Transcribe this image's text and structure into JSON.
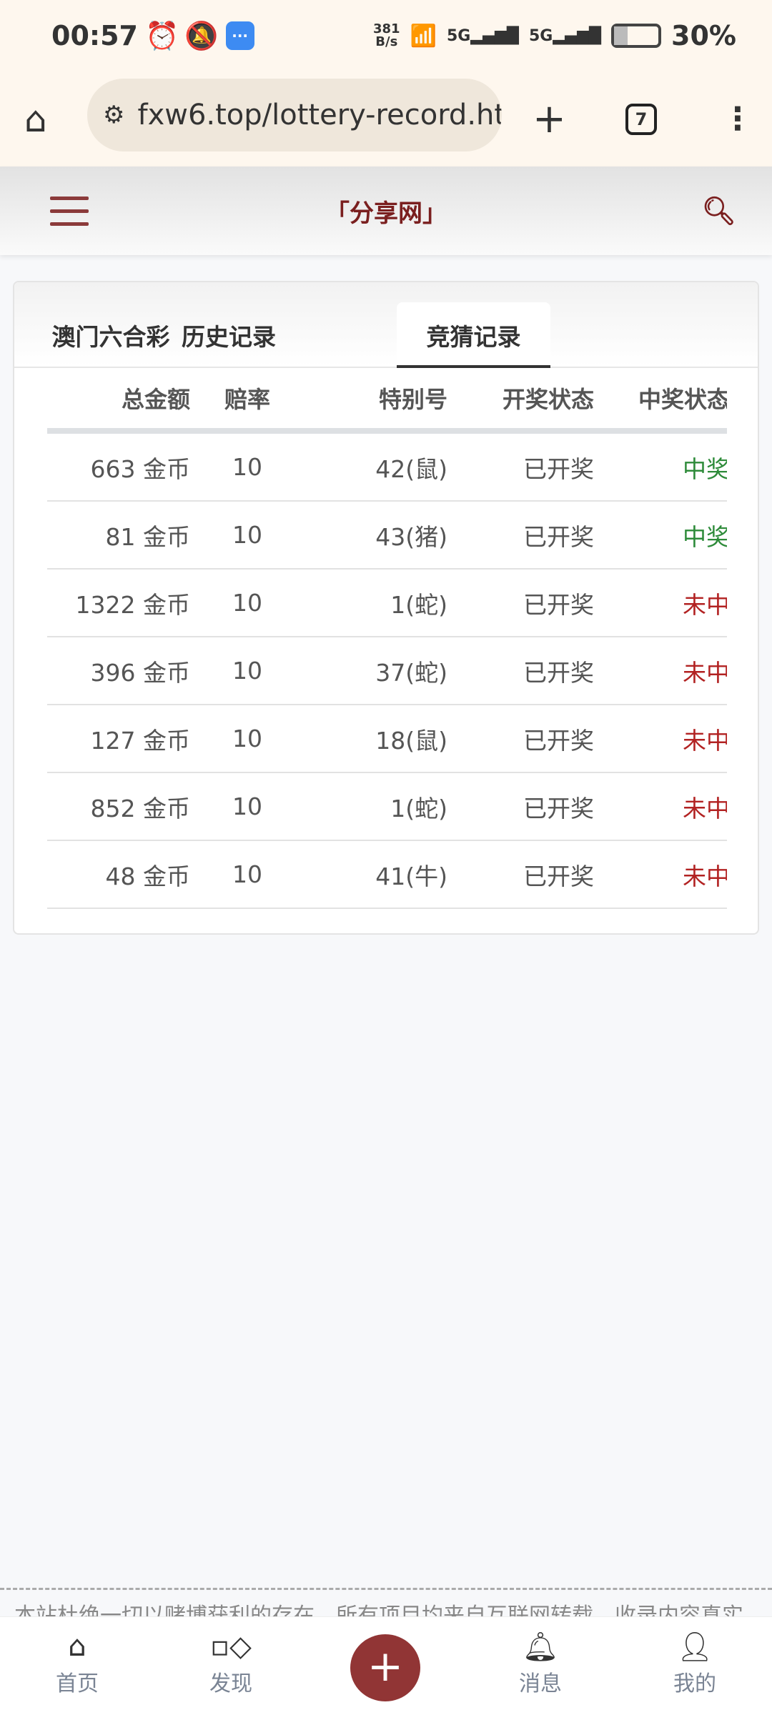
{
  "status_bar": {
    "time": "00:57",
    "net_speed": "381",
    "net_unit": "B/s",
    "battery": "30%",
    "icons": [
      "alarm-icon",
      "bell-off-icon",
      "message-app-icon",
      "wifi-icon",
      "signal-5g-icon",
      "signal-5g-icon",
      "battery-charging-icon"
    ]
  },
  "browser": {
    "url": "fxw6.top/lottery-record.ht",
    "tab_count": "7"
  },
  "header": {
    "title": "「分享网」"
  },
  "tabs": [
    {
      "label": "澳门六合彩"
    },
    {
      "label": "历史记录"
    },
    {
      "label": "竞猜记录",
      "active": true
    }
  ],
  "table": {
    "columns": [
      "总金额",
      "赔率",
      "特别号",
      "开奖状态",
      "中奖状态"
    ],
    "rows": [
      {
        "amount": "663 金币",
        "odds": "10",
        "number": "42(鼠)",
        "draw": "已开奖",
        "result": "中奖"
      },
      {
        "amount": "81 金币",
        "odds": "10",
        "number": "43(猪)",
        "draw": "已开奖",
        "result": "中奖"
      },
      {
        "amount": "1322 金币",
        "odds": "10",
        "number": "1(蛇)",
        "draw": "已开奖",
        "result": "未中"
      },
      {
        "amount": "396 金币",
        "odds": "10",
        "number": "37(蛇)",
        "draw": "已开奖",
        "result": "未中"
      },
      {
        "amount": "127 金币",
        "odds": "10",
        "number": "18(鼠)",
        "draw": "已开奖",
        "result": "未中"
      },
      {
        "amount": "852 金币",
        "odds": "10",
        "number": "1(蛇)",
        "draw": "已开奖",
        "result": "未中"
      },
      {
        "amount": "48 金币",
        "odds": "10",
        "number": "41(牛)",
        "draw": "已开奖",
        "result": "未中"
      }
    ],
    "win_color": "#2e8b3a",
    "lose_color": "#b22222"
  },
  "footer": {
    "text": "本站杜绝一切以赌博获利的存在，所有项目均来自互联网转载，收录内容真实"
  },
  "nav": [
    {
      "label": "首页",
      "icon": "home-icon"
    },
    {
      "label": "发现",
      "icon": "discover-icon"
    },
    {
      "label": "",
      "icon": "plus-icon"
    },
    {
      "label": "消息",
      "icon": "bell-icon"
    },
    {
      "label": "我的",
      "icon": "user-icon"
    }
  ],
  "accent": "#913535"
}
